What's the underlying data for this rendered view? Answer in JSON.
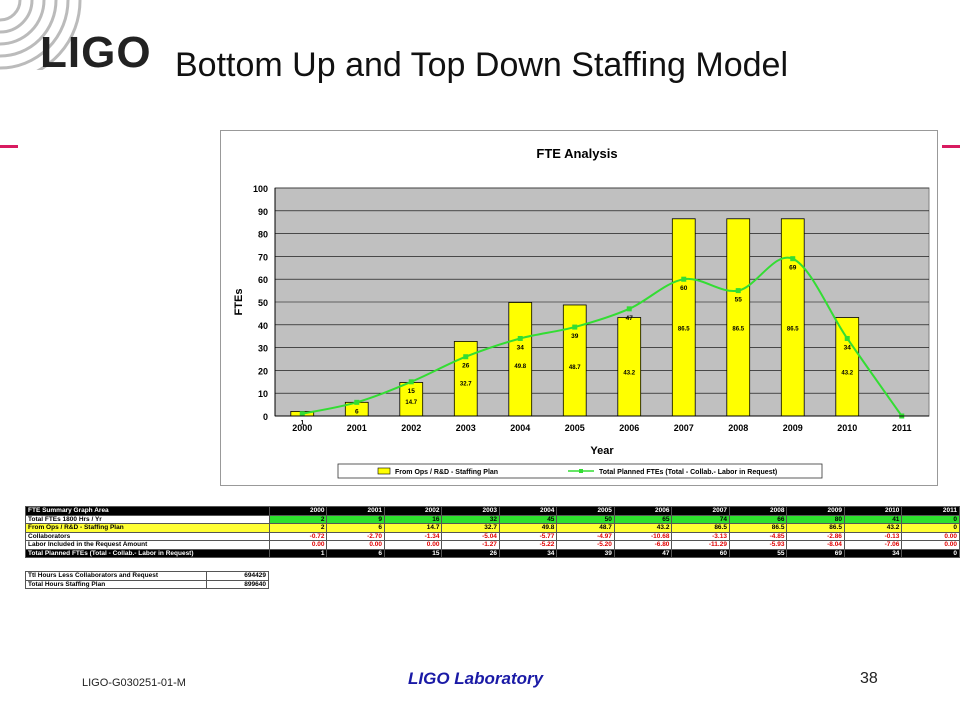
{
  "header": {
    "logo": "LIGO",
    "title": "Bottom Up and Top Down Staffing Model"
  },
  "colors": {
    "accent": "#d81b60",
    "bar": "#ffff00",
    "line": "#33dd33",
    "plot_bg": "#c0c0c0",
    "footer_text": "#1a1aa6"
  },
  "chart_data": {
    "type": "bar",
    "title": "FTE Analysis",
    "xlabel": "Year",
    "ylabel": "FTEs",
    "ylim": [
      0,
      100
    ],
    "yticks": [
      "0",
      "10",
      "20",
      "30",
      "40",
      "50",
      "60",
      "70",
      "80",
      "90",
      "100"
    ],
    "grid": true,
    "legend_position": "bottom",
    "categories": [
      "2000",
      "2001",
      "2002",
      "2003",
      "2004",
      "2005",
      "2006",
      "2007",
      "2008",
      "2009",
      "2010",
      "2011"
    ],
    "series": [
      {
        "name": "From Ops / R&D - Staffing Plan",
        "kind": "bar",
        "values": [
          2,
          6,
          14.7,
          32.7,
          49.8,
          48.7,
          43.2,
          86.5,
          86.5,
          86.5,
          43.2,
          0
        ],
        "labels": [
          "",
          "",
          "14.7",
          "32.7",
          "49.8",
          "48.7",
          "43.2",
          "86.5",
          "86.5",
          "86.5",
          "43.2",
          ""
        ]
      },
      {
        "name": "Total Planned FTEs (Total - Collab.- Labor in Request)",
        "kind": "line",
        "values": [
          1,
          6,
          15,
          26,
          34,
          39,
          47,
          60,
          55,
          69,
          34,
          0
        ],
        "labels": [
          "1",
          "6",
          "15",
          "26",
          "34",
          "39",
          "47",
          "60",
          "55",
          "69",
          "34",
          ""
        ]
      }
    ]
  },
  "summary_table": {
    "header_label": "FTE Summary Graph Area",
    "years": [
      "2000",
      "2001",
      "2002",
      "2003",
      "2004",
      "2005",
      "2006",
      "2007",
      "2008",
      "2009",
      "2010",
      "2011"
    ],
    "rows": [
      {
        "label": "Total FTEs 1800 Hrs / Yr",
        "style": "green",
        "values": [
          "2",
          "9",
          "16",
          "32",
          "45",
          "50",
          "65",
          "74",
          "66",
          "80",
          "41",
          "0"
        ]
      },
      {
        "label": "From Ops / R&D - Staffing Plan",
        "style": "yellow",
        "values": [
          "2",
          "6",
          "14.7",
          "32.7",
          "49.8",
          "48.7",
          "43.2",
          "86.5",
          "86.5",
          "86.5",
          "43.2",
          "0"
        ]
      },
      {
        "label": "Collaborators",
        "style": "red",
        "values": [
          "-0.72",
          "-2.70",
          "-1.34",
          "-5.04",
          "-5.77",
          "-4.97",
          "-10.68",
          "-3.13",
          "-4.85",
          "-2.86",
          "-0.13",
          "0.00"
        ]
      },
      {
        "label": "Labor Included in the Request Amount",
        "style": "red",
        "values": [
          "0.00",
          "0.00",
          "0.00",
          "-1.27",
          "-5.22",
          "-5.20",
          "-6.80",
          "-11.29",
          "-5.93",
          "-8.04",
          "-7.06",
          "0.00"
        ]
      },
      {
        "label": "Total Planned FTEs (Total - Collab.- Labor in Request)",
        "style": "total",
        "values": [
          "1",
          "6",
          "15",
          "26",
          "34",
          "39",
          "47",
          "60",
          "55",
          "69",
          "34",
          "0"
        ]
      }
    ]
  },
  "hours_table": [
    {
      "label": "Ttl Hours Less Collaborators and Request",
      "value": "694429"
    },
    {
      "label": "Total Hours Staffing Plan",
      "value": "899640"
    }
  ],
  "footer": {
    "doc_id": "LIGO-G030251-01-M",
    "lab": "LIGO Laboratory",
    "page": "38"
  }
}
